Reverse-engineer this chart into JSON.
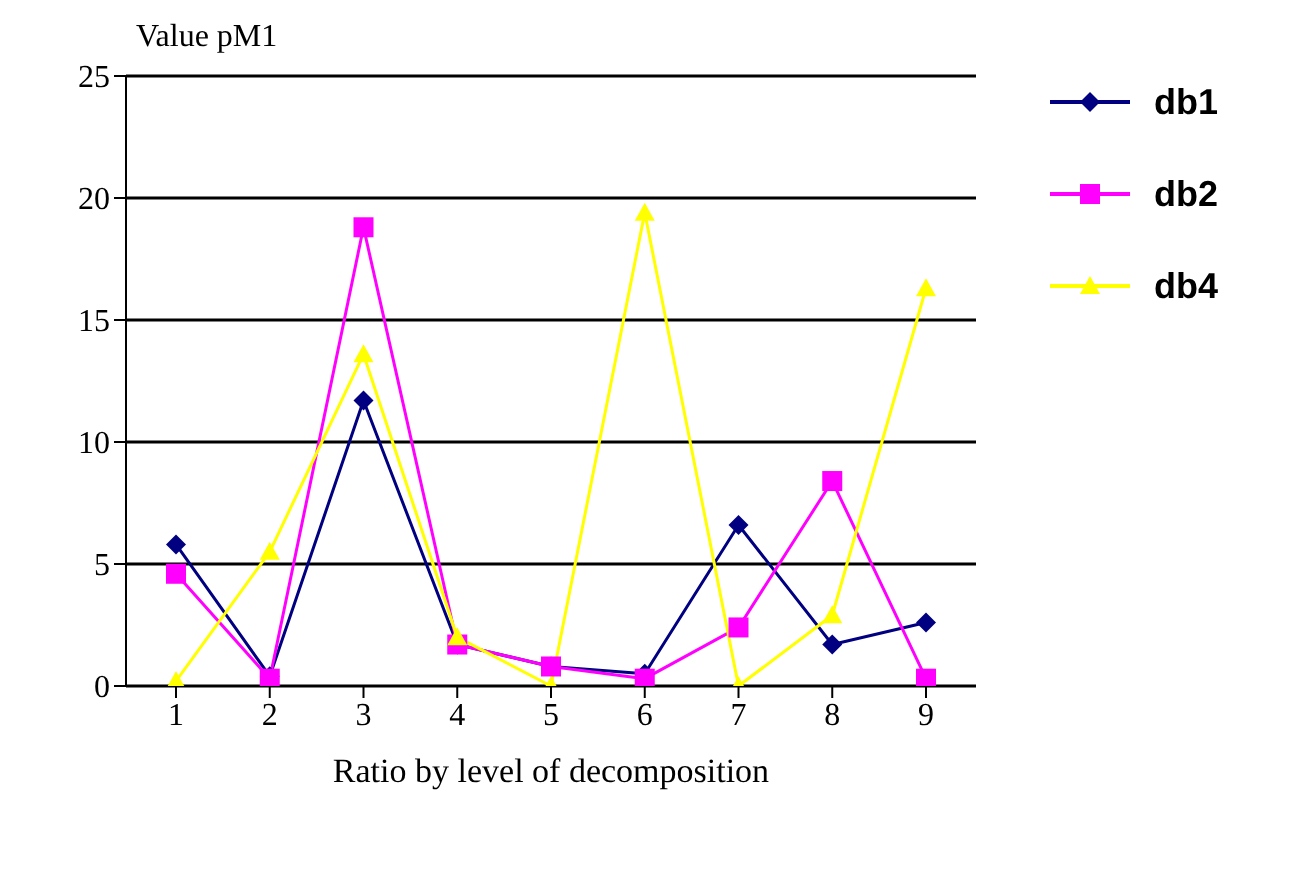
{
  "chart_data": {
    "type": "line",
    "xlabel": "Ratio by level of decomposition",
    "ylabel": "Value pM1",
    "categories": [
      "1",
      "2",
      "3",
      "4",
      "5",
      "6",
      "7",
      "8",
      "9"
    ],
    "ylim": [
      0,
      25
    ],
    "yticks": [
      0,
      5,
      10,
      15,
      20,
      25
    ],
    "grid": "y",
    "legend": "top right",
    "series": [
      {
        "name": "db1",
        "color": "#000080",
        "marker": "diamond",
        "values": [
          5.8,
          0.4,
          11.7,
          1.7,
          0.8,
          0.5,
          6.6,
          1.7,
          2.6
        ]
      },
      {
        "name": "db2",
        "color": "#ff00ff",
        "marker": "square",
        "values": [
          4.6,
          0.3,
          18.8,
          1.7,
          0.8,
          0.3,
          2.4,
          8.4,
          0.3
        ]
      },
      {
        "name": "db4",
        "color": "#ffff00",
        "marker": "triangle",
        "values": [
          0.2,
          5.5,
          13.6,
          2.0,
          0,
          19.4,
          0,
          2.9,
          16.3
        ]
      }
    ]
  }
}
